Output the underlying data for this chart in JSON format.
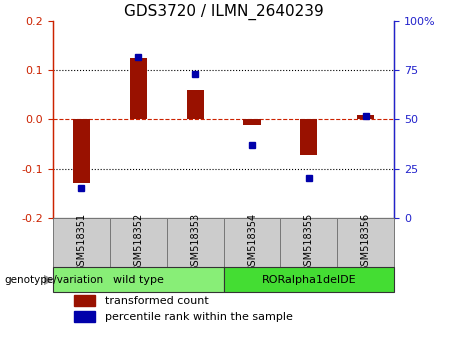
{
  "title": "GDS3720 / ILMN_2640239",
  "samples": [
    "GSM518351",
    "GSM518352",
    "GSM518353",
    "GSM518354",
    "GSM518355",
    "GSM518356"
  ],
  "red_bars": [
    -0.13,
    0.125,
    0.06,
    -0.012,
    -0.072,
    0.01
  ],
  "blue_dots": [
    15,
    82,
    73,
    37,
    20,
    52
  ],
  "ylim_left": [
    -0.2,
    0.2
  ],
  "ylim_right": [
    0,
    100
  ],
  "yticks_left": [
    -0.2,
    -0.1,
    0.0,
    0.1,
    0.2
  ],
  "yticks_right": [
    0,
    25,
    50,
    75,
    100
  ],
  "left_color": "#CC2200",
  "right_color": "#2222CC",
  "bar_color": "#991100",
  "dot_color": "#0000AA",
  "zero_line_color": "#CC2200",
  "grid_color": "#000000",
  "groups": [
    {
      "label": "wild type",
      "indices": [
        0,
        1,
        2
      ],
      "color": "#88EE77"
    },
    {
      "label": "RORalpha1delDE",
      "indices": [
        3,
        4,
        5
      ],
      "color": "#44DD33"
    }
  ],
  "group_label": "genotype/variation",
  "legend_red": "transformed count",
  "legend_blue": "percentile rank within the sample",
  "bg_color": "#FFFFFF",
  "plot_bg": "#FFFFFF",
  "tick_label_size": 8,
  "title_size": 11,
  "bar_width": 0.3
}
